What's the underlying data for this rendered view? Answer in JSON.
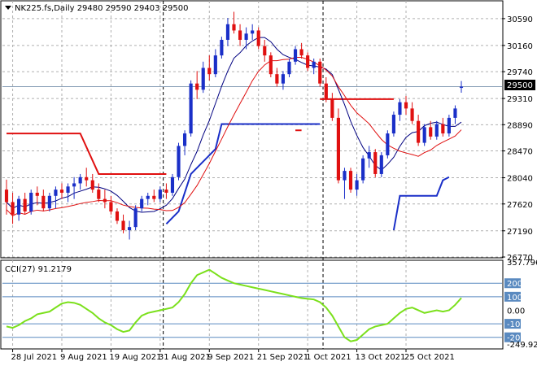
{
  "main": {
    "symbol_line": "NK225.fs,Daily  29480 29590 29403 29500",
    "price_label": "29500",
    "y_ticks": [
      30590,
      30160,
      29740,
      29310,
      28890,
      28470,
      28040,
      27620,
      27190,
      26770
    ]
  },
  "indicator": {
    "label": "CCI(27) 91.2179",
    "y_ticks": [
      "357.796",
      "200",
      "100",
      "0.00",
      "-100",
      "-200",
      "-249.929"
    ],
    "levels": [
      200,
      100,
      -100,
      -200
    ]
  },
  "x_labels": [
    "28 Jul 2021",
    "9 Aug 2021",
    "19 Aug 2021",
    "31 Aug 2021",
    "9 Sep 2021",
    "21 Sep 2021",
    "1 Oct 2021",
    "13 Oct 2021",
    "25 Oct 2021"
  ],
  "colors": {
    "bull": "#1a2fc8",
    "bear": "#e01010",
    "ma_fast": "#000080",
    "ma_slow": "#e01010",
    "trail_red": "#e01010",
    "trail_blue": "#1a2fc8",
    "cci": "#7be01c",
    "level_line": "#5a8ac0",
    "grid": "#b0b0b0"
  },
  "chart_data": {
    "type": "candlestick",
    "title": "NK225.fs,Daily",
    "last_bar": {
      "open": 29480,
      "high": 29590,
      "low": 29403,
      "close": 29500
    },
    "y_range": [
      26770,
      30810
    ],
    "ohlc": [
      [
        27850,
        28010,
        27450,
        27650
      ],
      [
        27650,
        27800,
        27300,
        27450
      ],
      [
        27450,
        27750,
        27350,
        27700
      ],
      [
        27700,
        27800,
        27450,
        27500
      ],
      [
        27500,
        27850,
        27450,
        27800
      ],
      [
        27800,
        27900,
        27600,
        27750
      ],
      [
        27750,
        27850,
        27500,
        27550
      ],
      [
        27550,
        27800,
        27500,
        27750
      ],
      [
        27750,
        27900,
        27550,
        27850
      ],
      [
        27850,
        27950,
        27700,
        27800
      ],
      [
        27800,
        27950,
        27650,
        27900
      ],
      [
        27900,
        28050,
        27700,
        27950
      ],
      [
        27950,
        28100,
        27850,
        28050
      ],
      [
        28050,
        28200,
        27900,
        28000
      ],
      [
        28000,
        28100,
        27800,
        27850
      ],
      [
        27850,
        27950,
        27650,
        27700
      ],
      [
        27700,
        27850,
        27550,
        27650
      ],
      [
        27650,
        27750,
        27450,
        27500
      ],
      [
        27500,
        27550,
        27300,
        27350
      ],
      [
        27350,
        27450,
        27150,
        27200
      ],
      [
        27200,
        27350,
        27050,
        27250
      ],
      [
        27250,
        27600,
        27200,
        27550
      ],
      [
        27550,
        27750,
        27500,
        27700
      ],
      [
        27700,
        27800,
        27600,
        27750
      ],
      [
        27750,
        27850,
        27650,
        27700
      ],
      [
        27700,
        27900,
        27650,
        27850
      ],
      [
        27850,
        27950,
        27700,
        27800
      ],
      [
        27800,
        28100,
        27750,
        28050
      ],
      [
        28050,
        28600,
        28000,
        28550
      ],
      [
        28550,
        28800,
        28400,
        28750
      ],
      [
        28750,
        29600,
        28700,
        29550
      ],
      [
        29550,
        29750,
        29300,
        29450
      ],
      [
        29450,
        29900,
        29400,
        29800
      ],
      [
        29800,
        30000,
        29600,
        29700
      ],
      [
        29700,
        30100,
        29650,
        30000
      ],
      [
        30000,
        30300,
        29950,
        30250
      ],
      [
        30250,
        30600,
        30150,
        30500
      ],
      [
        30500,
        30700,
        30350,
        30400
      ],
      [
        30400,
        30500,
        30150,
        30250
      ],
      [
        30250,
        30450,
        30100,
        30350
      ],
      [
        30350,
        30500,
        30250,
        30400
      ],
      [
        30400,
        30450,
        30100,
        30150
      ],
      [
        30150,
        30250,
        29900,
        30000
      ],
      [
        30000,
        30050,
        29650,
        29700
      ],
      [
        29700,
        29800,
        29500,
        29550
      ],
      [
        29550,
        29750,
        29450,
        29700
      ],
      [
        29700,
        29950,
        29650,
        29900
      ],
      [
        29900,
        30150,
        29850,
        30100
      ],
      [
        30100,
        30200,
        29950,
        30000
      ],
      [
        30000,
        30050,
        29750,
        29800
      ],
      [
        29800,
        29950,
        29700,
        29900
      ],
      [
        29900,
        29950,
        29500,
        29550
      ],
      [
        29550,
        29650,
        29250,
        29300
      ],
      [
        29300,
        29400,
        28950,
        29000
      ],
      [
        29000,
        29150,
        27950,
        28000
      ],
      [
        28000,
        28200,
        27700,
        28150
      ],
      [
        28150,
        28200,
        27800,
        27850
      ],
      [
        27850,
        28100,
        27750,
        28000
      ],
      [
        28000,
        28400,
        27950,
        28350
      ],
      [
        28350,
        28550,
        28200,
        28450
      ],
      [
        28450,
        28500,
        28050,
        28100
      ],
      [
        28100,
        28450,
        28050,
        28400
      ],
      [
        28400,
        28800,
        28350,
        28750
      ],
      [
        28750,
        29100,
        28700,
        29050
      ],
      [
        29050,
        29300,
        28950,
        29250
      ],
      [
        29250,
        29350,
        29050,
        29150
      ],
      [
        29150,
        29250,
        28900,
        28950
      ],
      [
        28950,
        29050,
        28550,
        28600
      ],
      [
        28600,
        28900,
        28550,
        28850
      ],
      [
        28850,
        28950,
        28650,
        28700
      ],
      [
        28700,
        28950,
        28650,
        28900
      ],
      [
        28900,
        29000,
        28700,
        28750
      ],
      [
        28750,
        29050,
        28700,
        29000
      ],
      [
        29000,
        29200,
        28900,
        29150
      ],
      [
        29480,
        29590,
        29403,
        29500
      ]
    ],
    "cci": [
      -120,
      -130,
      -110,
      -80,
      -60,
      -30,
      -20,
      -10,
      20,
      50,
      60,
      55,
      40,
      10,
      -20,
      -60,
      -90,
      -110,
      -140,
      -160,
      -150,
      -90,
      -40,
      -20,
      -10,
      0,
      10,
      20,
      60,
      120,
      200,
      260,
      280,
      300,
      270,
      240,
      220,
      200,
      190,
      180,
      170,
      160,
      150,
      140,
      130,
      120,
      110,
      100,
      90,
      85,
      80,
      60,
      20,
      -40,
      -120,
      -200,
      -230,
      -220,
      -180,
      -140,
      -120,
      -110,
      -100,
      -60,
      -20,
      10,
      20,
      0,
      -20,
      -10,
      0,
      -10,
      0,
      40,
      91.2179
    ]
  }
}
